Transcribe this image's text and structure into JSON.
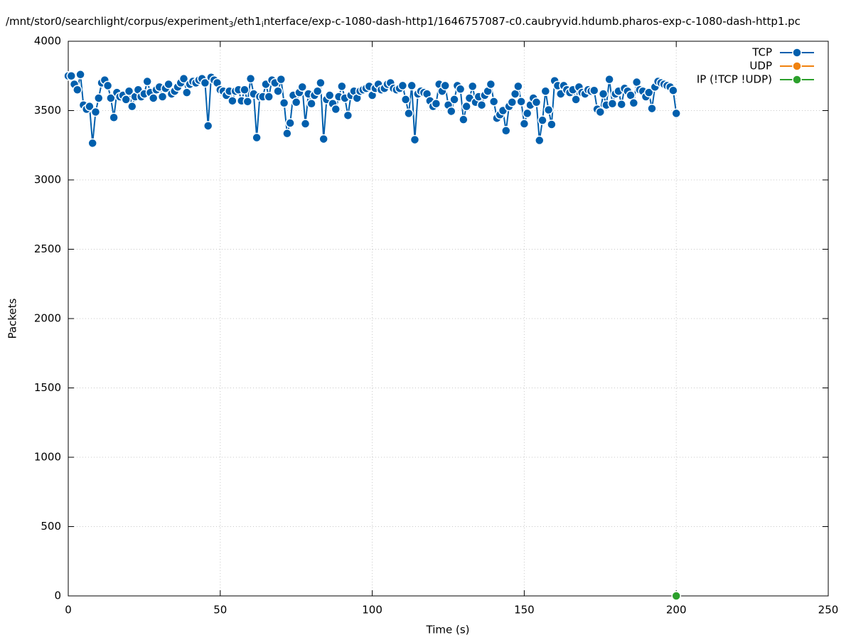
{
  "chart_data": {
    "type": "line",
    "title_parts": [
      "/mnt/stor0/searchlight/corpus/experiment",
      "3",
      "/eth1",
      "i",
      "nterface/exp-c-1080-dash-http1/1646757087-c0.caubryvid.hdumb.pharos-exp-c-1080-dash-http1.pc"
    ],
    "xlabel": "Time (s)",
    "ylabel": "Packets",
    "xlim": [
      0,
      250
    ],
    "xticks": [
      0,
      50,
      100,
      150,
      200,
      250
    ],
    "ylim": [
      0,
      4000
    ],
    "yticks": [
      0,
      500,
      1000,
      1500,
      2000,
      2500,
      3000,
      3500,
      4000
    ],
    "grid": true,
    "legend": "top-right",
    "series": [
      {
        "name": "TCP",
        "color": "#005fad",
        "x": [
          0,
          1,
          2,
          3,
          4,
          5,
          6,
          7,
          8,
          9,
          10,
          11,
          12,
          13,
          14,
          15,
          16,
          17,
          18,
          19,
          20,
          21,
          22,
          23,
          24,
          25,
          26,
          27,
          28,
          29,
          30,
          31,
          32,
          33,
          34,
          35,
          36,
          37,
          38,
          39,
          40,
          41,
          42,
          43,
          44,
          45,
          46,
          47,
          48,
          49,
          50,
          51,
          52,
          53,
          54,
          55,
          56,
          57,
          58,
          59,
          60,
          61,
          62,
          63,
          64,
          65,
          66,
          67,
          68,
          69,
          70,
          71,
          72,
          73,
          74,
          75,
          76,
          77,
          78,
          79,
          80,
          81,
          82,
          83,
          84,
          85,
          86,
          87,
          88,
          89,
          90,
          91,
          92,
          93,
          94,
          95,
          96,
          97,
          98,
          99,
          100,
          101,
          102,
          103,
          104,
          105,
          106,
          107,
          108,
          109,
          110,
          111,
          112,
          113,
          114,
          115,
          116,
          117,
          118,
          119,
          120,
          121,
          122,
          123,
          124,
          125,
          126,
          127,
          128,
          129,
          130,
          131,
          132,
          133,
          134,
          135,
          136,
          137,
          138,
          139,
          140,
          141,
          142,
          143,
          144,
          145,
          146,
          147,
          148,
          149,
          150,
          151,
          152,
          153,
          154,
          155,
          156,
          157,
          158,
          159,
          160,
          161,
          162,
          163,
          164,
          165,
          166,
          167,
          168,
          169,
          170,
          171,
          172,
          173,
          174,
          175,
          176,
          177,
          178,
          179,
          180,
          181,
          182,
          183,
          184,
          185,
          186,
          187,
          188,
          189,
          190,
          191,
          192,
          193,
          194,
          195,
          196,
          197,
          198,
          199,
          200
        ],
        "values": [
          3750,
          3750,
          3690,
          3650,
          3760,
          3540,
          3510,
          3530,
          3265,
          3490,
          3590,
          3700,
          3720,
          3680,
          3590,
          3450,
          3630,
          3600,
          3610,
          3580,
          3640,
          3530,
          3600,
          3650,
          3600,
          3620,
          3710,
          3630,
          3590,
          3650,
          3670,
          3600,
          3660,
          3690,
          3620,
          3640,
          3670,
          3700,
          3730,
          3630,
          3690,
          3710,
          3700,
          3720,
          3730,
          3700,
          3390,
          3740,
          3720,
          3700,
          3650,
          3640,
          3610,
          3640,
          3570,
          3640,
          3650,
          3570,
          3650,
          3565,
          3730,
          3620,
          3305,
          3600,
          3600,
          3690,
          3600,
          3720,
          3700,
          3640,
          3725,
          3555,
          3335,
          3410,
          3610,
          3560,
          3630,
          3670,
          3405,
          3620,
          3550,
          3610,
          3640,
          3700,
          3295,
          3580,
          3610,
          3550,
          3510,
          3600,
          3675,
          3590,
          3465,
          3610,
          3640,
          3590,
          3640,
          3650,
          3660,
          3675,
          3610,
          3660,
          3690,
          3650,
          3660,
          3690,
          3700,
          3660,
          3650,
          3660,
          3680,
          3580,
          3480,
          3680,
          3290,
          3620,
          3640,
          3630,
          3620,
          3570,
          3530,
          3550,
          3690,
          3640,
          3680,
          3540,
          3495,
          3580,
          3680,
          3655,
          3435,
          3530,
          3590,
          3675,
          3560,
          3600,
          3540,
          3610,
          3640,
          3690,
          3565,
          3445,
          3470,
          3500,
          3355,
          3530,
          3560,
          3620,
          3675,
          3565,
          3405,
          3480,
          3540,
          3590,
          3560,
          3285,
          3430,
          3640,
          3505,
          3400,
          3715,
          3680,
          3620,
          3680,
          3650,
          3630,
          3650,
          3580,
          3670,
          3630,
          3620,
          3650,
          3640,
          3645,
          3510,
          3490,
          3620,
          3540,
          3725,
          3550,
          3620,
          3640,
          3545,
          3660,
          3640,
          3610,
          3555,
          3705,
          3650,
          3640,
          3600,
          3630,
          3515,
          3670,
          3710,
          3700,
          3690,
          3680,
          3670,
          3645,
          3480
        ]
      },
      {
        "name": "UDP",
        "color": "#f0820f",
        "x": [
          200
        ],
        "values": [
          0
        ]
      },
      {
        "name": "IP (!TCP  !UDP)",
        "color": "#2ca02c",
        "x": [
          200
        ],
        "values": [
          0
        ]
      }
    ]
  }
}
